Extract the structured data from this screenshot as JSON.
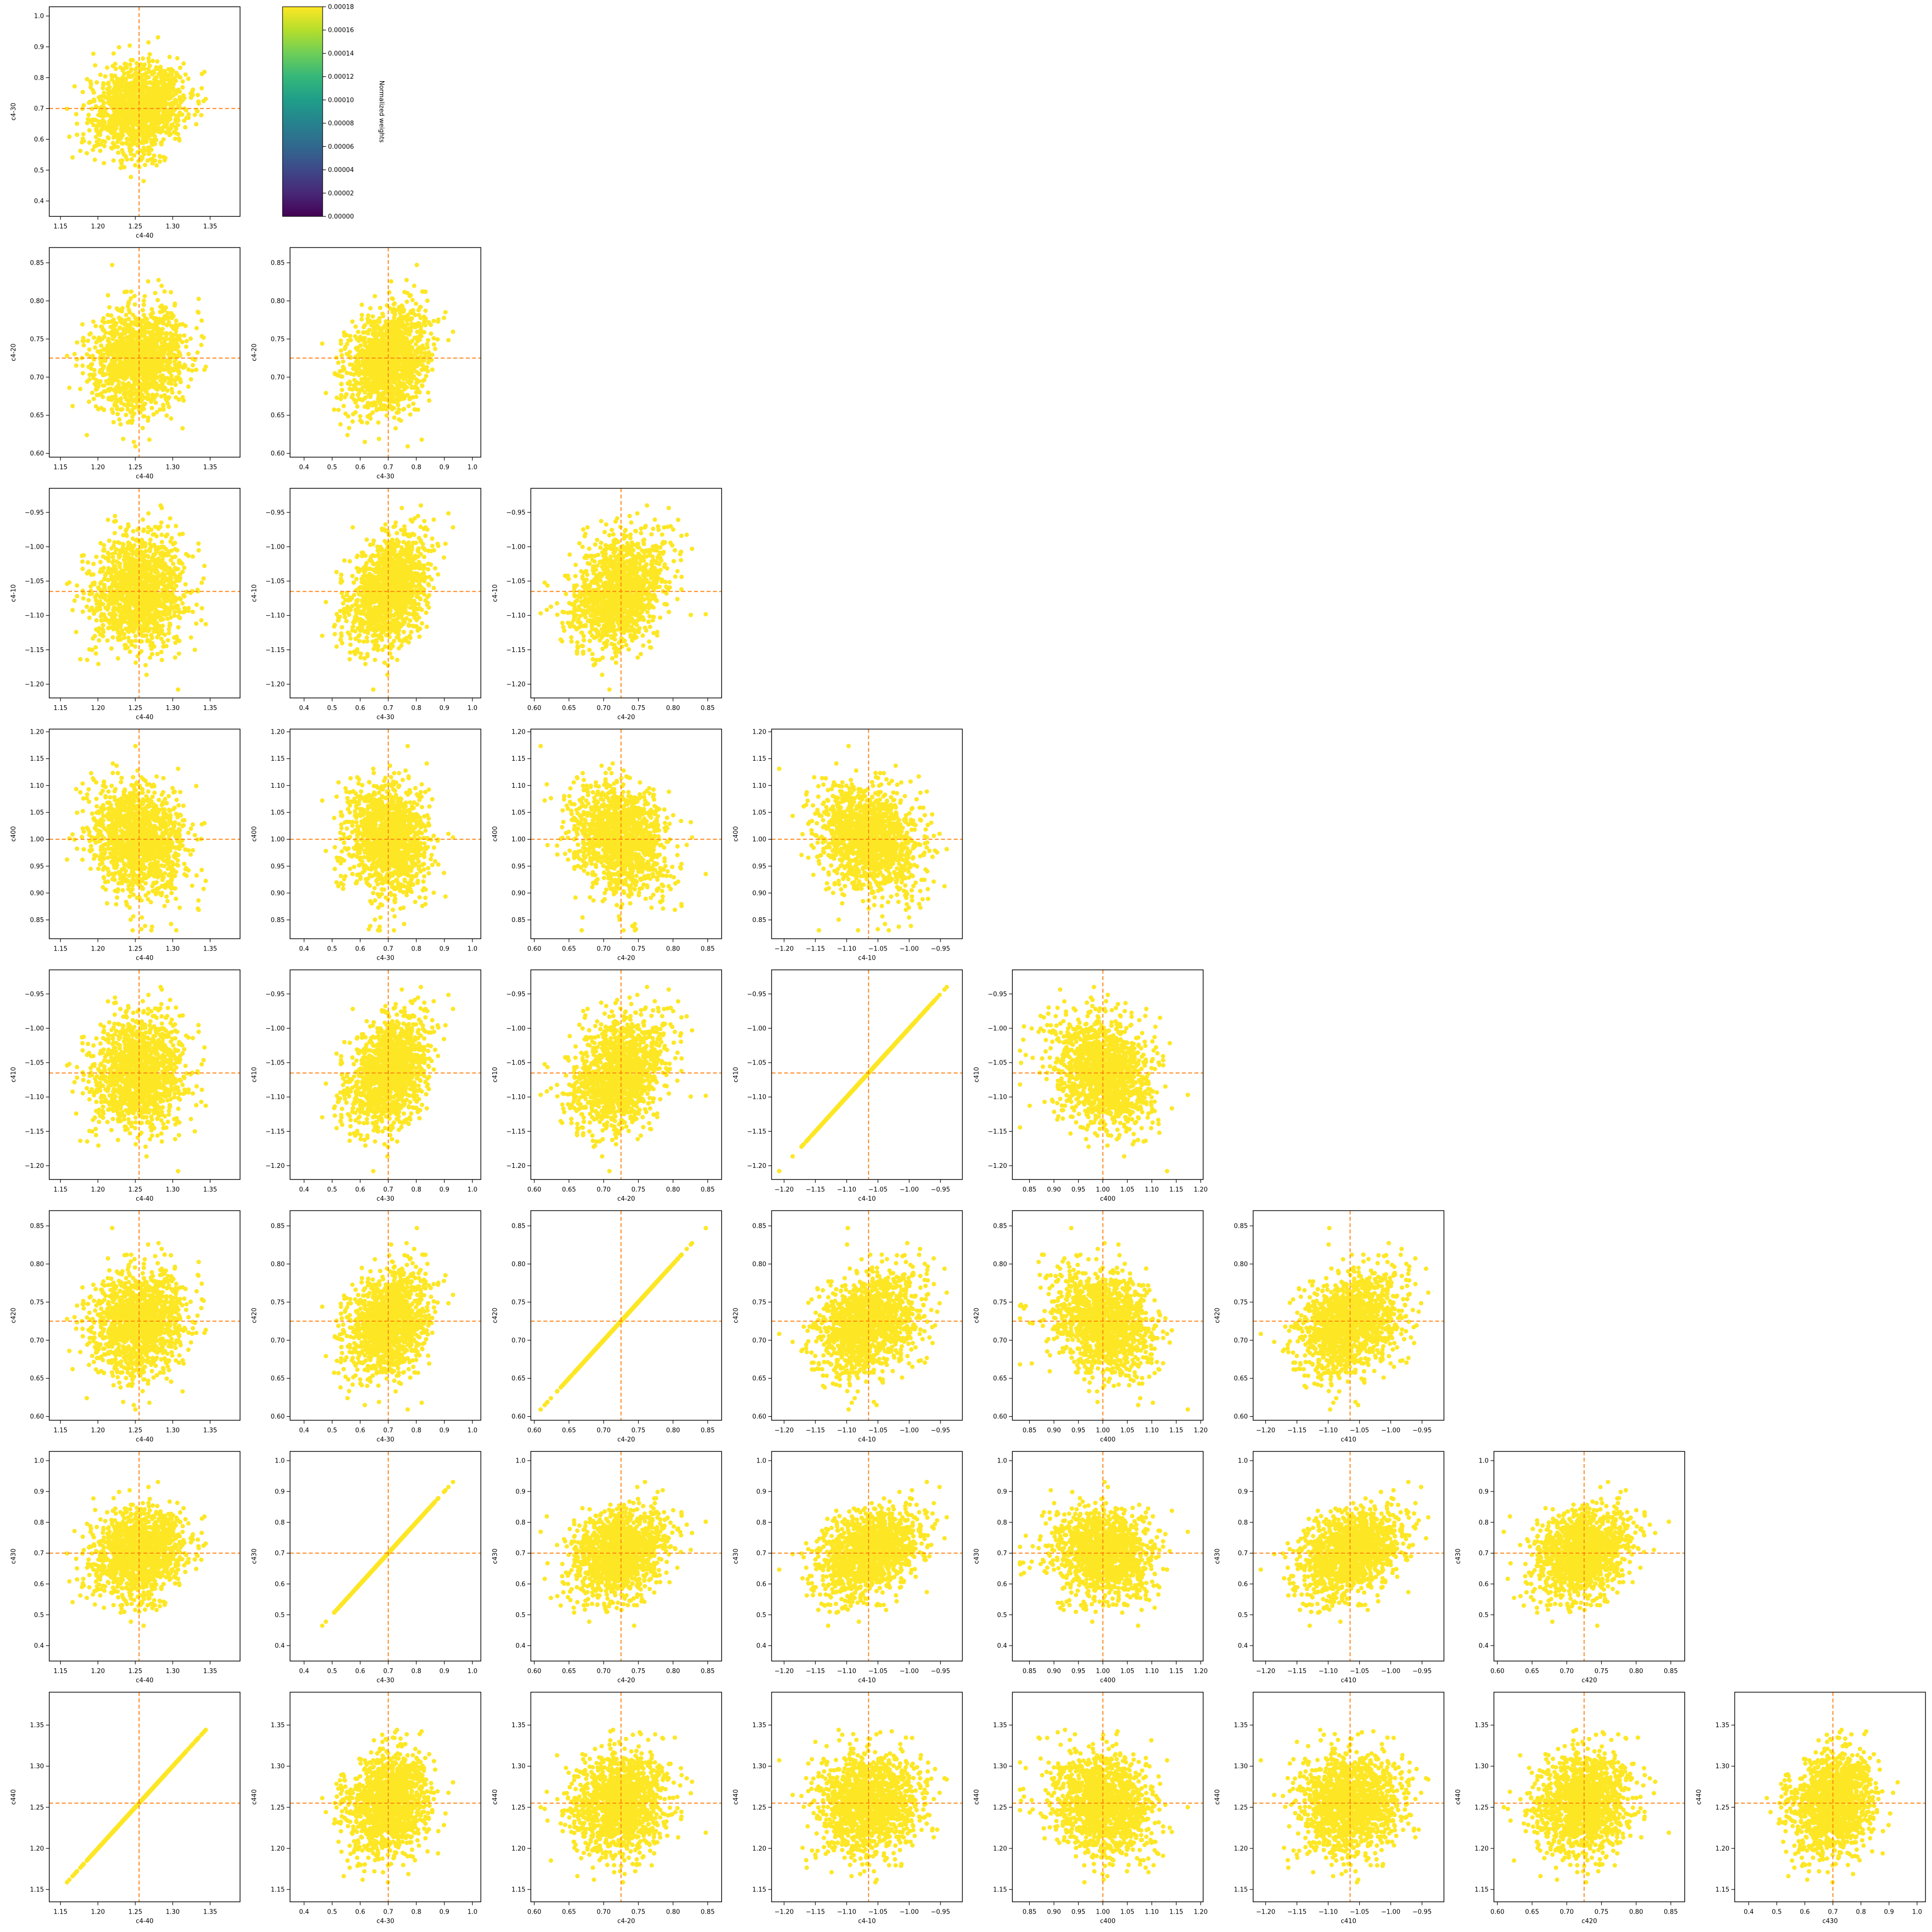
{
  "figure": {
    "colorbar": {
      "label": "Normalized weights",
      "ticks": [
        "0.00000",
        "0.00002",
        "0.00004",
        "0.00006",
        "0.00008",
        "0.00010",
        "0.00012",
        "0.00014",
        "0.00016",
        "0.00018"
      ],
      "colormap": "viridis",
      "range": [
        0,
        0.00018
      ]
    },
    "point_color": "#fde725",
    "reference_line_color": "#ff7f0e"
  },
  "params": [
    {
      "name": "c4-40",
      "ref": 1.255,
      "range": [
        1.135,
        1.39
      ],
      "ticks": [
        "1.15",
        "1.20",
        "1.25",
        "1.30",
        "1.35"
      ],
      "mean": 1.255,
      "sd": 0.03
    },
    {
      "name": "c4-30",
      "ref": 0.7,
      "range": [
        0.35,
        1.03
      ],
      "ticks": [
        "0.4",
        "0.5",
        "0.6",
        "0.7",
        "0.8",
        "0.9",
        "1.0"
      ],
      "mean": 0.7,
      "sd": 0.07
    },
    {
      "name": "c4-20",
      "ref": 0.725,
      "range": [
        0.595,
        0.87
      ],
      "ticks": [
        "0.60",
        "0.65",
        "0.70",
        "0.75",
        "0.80",
        "0.85"
      ],
      "mean": 0.725,
      "sd": 0.035
    },
    {
      "name": "c4-10",
      "ref": -1.065,
      "range": [
        -1.22,
        -0.915
      ],
      "ticks": [
        "−1.20",
        "−1.15",
        "−1.10",
        "−1.05",
        "−1.00",
        "−0.95"
      ],
      "mean": -1.065,
      "sd": 0.04
    },
    {
      "name": "c400",
      "ref": 1.0,
      "range": [
        0.815,
        1.205
      ],
      "ticks": [
        "0.85",
        "0.90",
        "0.95",
        "1.00",
        "1.05",
        "1.10",
        "1.15",
        "1.20"
      ],
      "mean": 1.0,
      "sd": 0.05
    },
    {
      "name": "c410",
      "ref": -1.065,
      "range": [
        -1.22,
        -0.915
      ],
      "ticks": [
        "−1.20",
        "−1.15",
        "−1.10",
        "−1.05",
        "−1.00",
        "−0.95"
      ],
      "mean": -1.065,
      "sd": 0.04
    },
    {
      "name": "c420",
      "ref": 0.725,
      "range": [
        0.595,
        0.87
      ],
      "ticks": [
        "0.60",
        "0.65",
        "0.70",
        "0.75",
        "0.80",
        "0.85"
      ],
      "mean": 0.725,
      "sd": 0.035
    },
    {
      "name": "c430",
      "ref": 0.7,
      "range": [
        0.35,
        1.03
      ],
      "ticks": [
        "0.4",
        "0.5",
        "0.6",
        "0.7",
        "0.8",
        "0.9",
        "1.0"
      ],
      "mean": 0.7,
      "sd": 0.07
    },
    {
      "name": "c440",
      "ref": 1.255,
      "range": [
        1.135,
        1.39
      ],
      "ticks": [
        "1.15",
        "1.20",
        "1.25",
        "1.30",
        "1.35"
      ],
      "mean": 1.255,
      "sd": 0.03
    }
  ],
  "chart_data": {
    "type": "scatter",
    "layout": "corner plot (lower triangle), 8 rows x 8 columns of pairwise scatter panels",
    "description_of_points": "weighted posterior samples, all colored at the maximum of the viridis colormap",
    "identical_pairs": [
      [
        "c4-40",
        "c440"
      ],
      [
        "c4-30",
        "c430"
      ],
      [
        "c4-20",
        "c420"
      ],
      [
        "c4-10",
        "c410"
      ]
    ],
    "reference_values": {
      "c4-40": 1.255,
      "c4-30": 0.7,
      "c4-20": 0.725,
      "c4-10": -1.065,
      "c400": 1.0,
      "c410": -1.065,
      "c420": 0.725,
      "c430": 0.7,
      "c440": 1.255
    },
    "marginal_mean": {
      "c4-40": 1.255,
      "c4-30": 0.7,
      "c4-20": 0.725,
      "c4-10": -1.065,
      "c400": 1.0,
      "c410": -1.065,
      "c420": 0.725,
      "c430": 0.7,
      "c440": 1.255
    },
    "marginal_sd": {
      "c4-40": 0.03,
      "c4-30": 0.07,
      "c4-20": 0.035,
      "c4-10": 0.04,
      "c400": 0.05,
      "c410": 0.04,
      "c420": 0.035,
      "c430": 0.07,
      "c440": 0.03
    },
    "panels": "row r (1..8) uses y = params[r+?] per figure: rows y-params: c4-30, c4-20, c4-10, c400, c410, c420, c430, c440; columns x-params: c4-40, c4-30, c4-20, c4-10, c400, c410, c420, c430",
    "row_params": [
      "c4-30",
      "c4-20",
      "c4-10",
      "c400",
      "c410",
      "c420",
      "c430",
      "c440"
    ],
    "col_params": [
      "c4-40",
      "c4-30",
      "c4-20",
      "c4-10",
      "c400",
      "c410",
      "c420",
      "c430"
    ],
    "sample_count": 1400
  }
}
